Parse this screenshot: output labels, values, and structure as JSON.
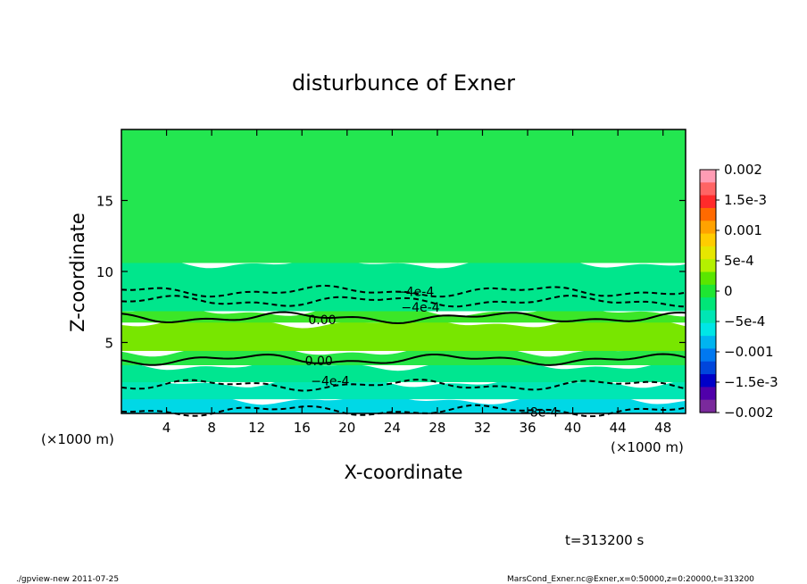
{
  "chart_data": {
    "type": "heatmap",
    "title": "disturbunce of Exner",
    "xlabel": "X-coordinate",
    "ylabel": "Z-coordinate",
    "x_unit_left": "(×1000 m)",
    "x_unit_right": "(×1000 m)",
    "xlim": [
      0,
      50
    ],
    "ylim": [
      0,
      20
    ],
    "x_ticks": [
      4,
      8,
      12,
      16,
      20,
      24,
      28,
      32,
      36,
      40,
      44,
      48
    ],
    "x_tick_labels": [
      "4",
      "8",
      "12",
      "16",
      "20",
      "24",
      "28",
      "32",
      "36",
      "40",
      "44",
      "48"
    ],
    "y_ticks": [
      5,
      10,
      15
    ],
    "y_tick_labels": [
      "5",
      "10",
      "15"
    ],
    "colorbar": {
      "min": -0.002,
      "max": 0.002,
      "labels": [
        "0.002",
        "1.5e-3",
        "0.001",
        "5e-4",
        "0",
        "−5e-4",
        "−0.001",
        "−1.5e-3",
        "−0.002"
      ],
      "label_values": [
        0.002,
        0.0015,
        0.001,
        0.0005,
        0,
        -0.0005,
        -0.001,
        -0.0015,
        -0.002
      ],
      "band_colors": [
        "#ff9cb4",
        "#ff6464",
        "#ff2a2a",
        "#ff6a00",
        "#ffa200",
        "#ffcc00",
        "#e6e600",
        "#b4f000",
        "#5ae600",
        "#1ee632",
        "#00e678",
        "#00e6b4",
        "#00e6e6",
        "#00b4f0",
        "#0078f0",
        "#0046dc",
        "#0000c8",
        "#5000aa",
        "#7a2a9c"
      ]
    },
    "fill_layers": [
      {
        "z_from": 0.0,
        "z_to": 1.0,
        "color": "#00d8e6"
      },
      {
        "z_from": 1.0,
        "z_to": 2.2,
        "color": "#00e6b4"
      },
      {
        "z_from": 2.2,
        "z_to": 3.4,
        "color": "#00e690"
      },
      {
        "z_from": 3.4,
        "z_to": 4.4,
        "color": "#28e646"
      },
      {
        "z_from": 4.4,
        "z_to": 6.4,
        "color": "#78e600"
      },
      {
        "z_from": 6.4,
        "z_to": 7.2,
        "color": "#3ce628"
      },
      {
        "z_from": 7.2,
        "z_to": 10.6,
        "color": "#00e68c"
      },
      {
        "z_from": 10.6,
        "z_to": 20.0,
        "color": "#23e650"
      }
    ],
    "contours": [
      {
        "level": "0.00",
        "style": "solid-bold",
        "z": 6.75
      },
      {
        "level": "0.00",
        "style": "solid-bold",
        "z": 3.8
      },
      {
        "level": "-4e-4",
        "style": "dashed-bold",
        "z": 2.0
      },
      {
        "level": "-4e-4",
        "style": "dashed-bold",
        "z": 7.9
      },
      {
        "level": "-4e-4",
        "style": "dashed-bold",
        "z": 8.6
      },
      {
        "level": "-8e-4",
        "style": "dashed-bold",
        "z": 0.2
      }
    ],
    "contour_labels": [
      {
        "text": "0.00",
        "x": 17.8,
        "z": 6.6
      },
      {
        "text": "0.00",
        "x": 17.5,
        "z": 3.7
      },
      {
        "text": "−4e-4",
        "x": 18.5,
        "z": 2.3
      },
      {
        "text": "−4e-4",
        "x": 26.0,
        "z": 8.6
      },
      {
        "text": "−4e-4",
        "x": 26.5,
        "z": 7.5
      },
      {
        "text": "−8e-4",
        "x": 37.0,
        "z": 0.1
      }
    ],
    "time_label": "t=313200 s",
    "footer_left": "./gpview-new   2011-07-25",
    "footer_right": "MarsCond_Exner.nc@Exner,x=0:50000,z=0:20000,t=313200"
  }
}
